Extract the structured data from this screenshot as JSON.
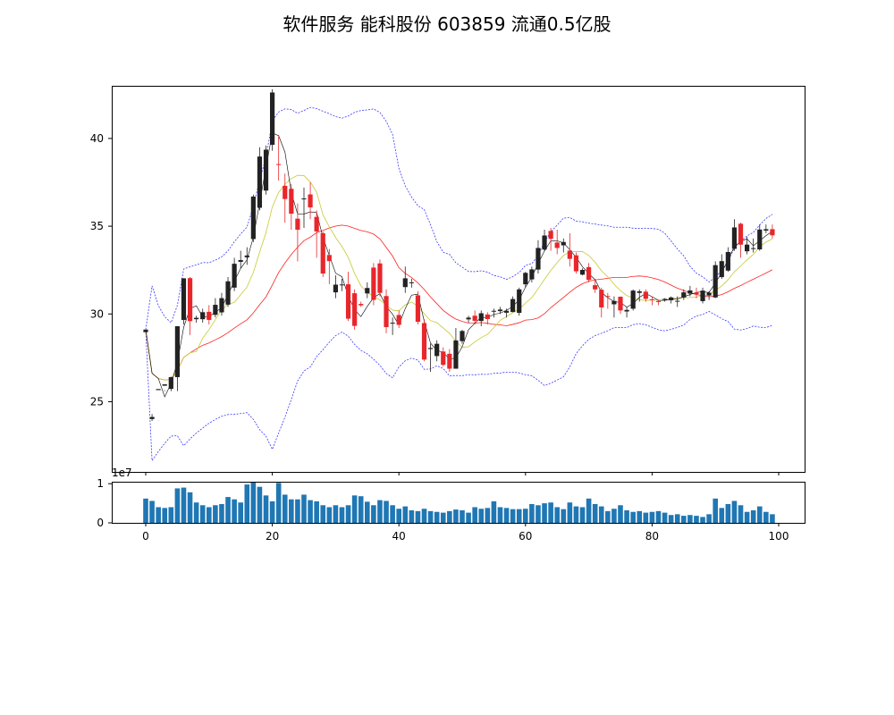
{
  "chart_data": {
    "type": "candlestick",
    "title": "软件服务 能科股份 603859 流通0.5亿股",
    "colors": {
      "up": "#e8262b",
      "down": "#222222",
      "ma5": "#000000",
      "ma10": "#c8c832",
      "ma20": "#ff2020",
      "boll": "#3a3aff",
      "volume": "#1f77b4"
    },
    "x_ticks": [
      "0",
      "20",
      "40",
      "60",
      "80",
      "100"
    ],
    "price_axis": {
      "ylim": [
        21,
        43
      ],
      "ticks": [
        "25",
        "30",
        "35",
        "40"
      ]
    },
    "volume_axis": {
      "ylim": [
        0,
        1.05
      ],
      "ticks": [
        "0",
        "1"
      ],
      "multiplier": "1e7"
    },
    "ohlc": [
      [
        28.96,
        29.11,
        26.69,
        26.68
      ],
      [
        24.01,
        24.13,
        24.3,
        23.9
      ],
      [
        25.66,
        25.72,
        23.91,
        23.9
      ],
      [
        25.91,
        25.99,
        25.65,
        25.6
      ],
      [
        25.73,
        26.4,
        26.43,
        25.6
      ],
      [
        26.4,
        29.3,
        29.31,
        25.6
      ],
      [
        29.66,
        32.03,
        32.04,
        29.4
      ],
      [
        32.04,
        29.59,
        32.1,
        28.8
      ],
      [
        29.7,
        29.78,
        29.9,
        29.5
      ],
      [
        29.7,
        30.1,
        30.3,
        29.5
      ],
      [
        30.12,
        29.66,
        30.5,
        29.4
      ],
      [
        29.95,
        30.52,
        30.9,
        29.8
      ],
      [
        30.09,
        30.9,
        31.2,
        29.9
      ],
      [
        30.53,
        31.86,
        32.1,
        30.4
      ],
      [
        31.5,
        32.86,
        33.2,
        31.3
      ],
      [
        32.97,
        33.07,
        33.6,
        32.6
      ],
      [
        33.23,
        33.33,
        33.8,
        32.8
      ],
      [
        34.27,
        36.69,
        36.8,
        34.1
      ],
      [
        36.05,
        38.97,
        39.5,
        35.9
      ],
      [
        37.03,
        39.36,
        39.6,
        36.8
      ],
      [
        39.64,
        42.62,
        42.8,
        39.3
      ],
      [
        38.54,
        38.49,
        40.2,
        37.6
      ],
      [
        37.3,
        36.55,
        38.0,
        35.2
      ],
      [
        37.13,
        35.71,
        37.4,
        34.8
      ],
      [
        35.43,
        34.8,
        36.3,
        33.0
      ],
      [
        36.58,
        36.58,
        37.2,
        34.9
      ],
      [
        36.81,
        36.07,
        37.5,
        35.4
      ],
      [
        35.53,
        34.7,
        35.9,
        33.2
      ],
      [
        34.6,
        32.3,
        34.7,
        32.1
      ],
      [
        33.36,
        33.01,
        33.7,
        31.7
      ],
      [
        31.23,
        31.67,
        32.2,
        30.9
      ],
      [
        31.68,
        31.68,
        32.0,
        31.3
      ],
      [
        31.69,
        29.73,
        32.4,
        29.6
      ],
      [
        31.18,
        29.32,
        31.4,
        29.1
      ],
      [
        30.57,
        30.49,
        30.7,
        30.4
      ],
      [
        31.17,
        31.48,
        31.8,
        30.9
      ],
      [
        32.64,
        30.8,
        32.9,
        30.5
      ],
      [
        32.88,
        31.2,
        33.1,
        31.0
      ],
      [
        31.02,
        29.25,
        31.4,
        28.9
      ],
      [
        29.47,
        29.5,
        29.8,
        28.8
      ],
      [
        29.94,
        29.38,
        30.2,
        29.2
      ],
      [
        31.53,
        32.03,
        32.7,
        31.2
      ],
      [
        31.77,
        31.8,
        32.0,
        31.5
      ],
      [
        31.06,
        29.55,
        31.3,
        29.4
      ],
      [
        29.48,
        27.4,
        29.7,
        27.3
      ],
      [
        28.0,
        28.06,
        28.3,
        26.7
      ],
      [
        27.6,
        28.3,
        28.5,
        27.3
      ],
      [
        27.86,
        27.1,
        28.1,
        27.0
      ],
      [
        27.73,
        26.88,
        28.0,
        26.7
      ],
      [
        26.88,
        28.49,
        29.2,
        26.9
      ],
      [
        28.45,
        29.03,
        29.1,
        28.3
      ],
      [
        29.69,
        29.79,
        29.9,
        29.5
      ],
      [
        29.9,
        29.61,
        30.2,
        29.4
      ],
      [
        29.6,
        30.04,
        30.2,
        29.3
      ],
      [
        29.97,
        29.71,
        30.1,
        29.4
      ],
      [
        30.15,
        30.18,
        30.3,
        29.8
      ],
      [
        30.16,
        30.25,
        30.4,
        30.0
      ],
      [
        30.07,
        30.18,
        30.3,
        29.8
      ],
      [
        30.11,
        30.85,
        31.0,
        30.1
      ],
      [
        30.06,
        31.4,
        31.5,
        29.9
      ],
      [
        31.69,
        32.34,
        32.4,
        31.5
      ],
      [
        31.97,
        32.54,
        32.7,
        31.8
      ],
      [
        32.53,
        33.76,
        34.2,
        32.3
      ],
      [
        33.67,
        34.47,
        34.8,
        33.6
      ],
      [
        34.73,
        34.28,
        34.9,
        33.6
      ],
      [
        34.07,
        33.76,
        34.8,
        33.4
      ],
      [
        33.91,
        34.1,
        34.3,
        33.5
      ],
      [
        33.61,
        33.14,
        34.6,
        32.7
      ],
      [
        33.34,
        32.43,
        33.5,
        32.3
      ],
      [
        32.24,
        32.51,
        32.6,
        32.2
      ],
      [
        32.67,
        31.94,
        32.9,
        31.8
      ],
      [
        31.64,
        31.4,
        32.0,
        31.2
      ],
      [
        31.38,
        30.37,
        31.5,
        29.8
      ],
      [
        31.02,
        31.01,
        31.2,
        30.3
      ],
      [
        30.55,
        30.74,
        31.0,
        29.8
      ],
      [
        30.98,
        30.2,
        31.0,
        30.0
      ],
      [
        30.14,
        30.23,
        30.4,
        29.8
      ],
      [
        30.3,
        31.33,
        31.4,
        30.2
      ],
      [
        31.2,
        31.29,
        31.4,
        30.7
      ],
      [
        31.27,
        30.86,
        31.4,
        30.7
      ],
      [
        30.83,
        30.79,
        31.0,
        30.5
      ],
      [
        30.73,
        30.68,
        30.8,
        30.5
      ],
      [
        30.86,
        30.86,
        30.9,
        30.7
      ],
      [
        30.78,
        30.94,
        31.0,
        30.6
      ],
      [
        30.71,
        30.75,
        31.0,
        30.4
      ],
      [
        30.94,
        31.23,
        31.4,
        30.8
      ],
      [
        31.16,
        31.34,
        31.6,
        31.0
      ],
      [
        31.22,
        31.12,
        31.5,
        30.9
      ],
      [
        30.73,
        31.33,
        31.5,
        30.6
      ],
      [
        31.05,
        31.21,
        31.3,
        30.8
      ],
      [
        30.94,
        32.78,
        33.0,
        30.9
      ],
      [
        32.1,
        33.01,
        33.4,
        32.0
      ],
      [
        32.47,
        33.53,
        33.8,
        32.4
      ],
      [
        33.71,
        34.93,
        35.4,
        33.6
      ],
      [
        35.14,
        33.95,
        35.2,
        33.2
      ],
      [
        33.57,
        33.95,
        34.4,
        33.4
      ],
      [
        33.74,
        33.75,
        34.3,
        33.5
      ],
      [
        33.68,
        34.81,
        35.1,
        33.6
      ],
      [
        34.75,
        34.83,
        35.1,
        34.6
      ],
      [
        34.83,
        34.48,
        35.1,
        34.3
      ]
    ],
    "volume": [
      0.62,
      0.56,
      0.4,
      0.38,
      0.4,
      0.88,
      0.9,
      0.78,
      0.52,
      0.45,
      0.4,
      0.45,
      0.48,
      0.66,
      0.6,
      0.52,
      0.98,
      1.05,
      0.92,
      0.7,
      0.55,
      1.02,
      0.72,
      0.6,
      0.6,
      0.72,
      0.58,
      0.55,
      0.45,
      0.4,
      0.45,
      0.4,
      0.45,
      0.7,
      0.68,
      0.54,
      0.45,
      0.58,
      0.56,
      0.45,
      0.36,
      0.42,
      0.32,
      0.3,
      0.36,
      0.3,
      0.28,
      0.26,
      0.3,
      0.34,
      0.32,
      0.26,
      0.4,
      0.36,
      0.38,
      0.55,
      0.4,
      0.38,
      0.35,
      0.35,
      0.36,
      0.48,
      0.45,
      0.5,
      0.52,
      0.4,
      0.35,
      0.52,
      0.42,
      0.4,
      0.62,
      0.48,
      0.42,
      0.3,
      0.36,
      0.45,
      0.32,
      0.28,
      0.3,
      0.26,
      0.28,
      0.3,
      0.26,
      0.2,
      0.22,
      0.18,
      0.2,
      0.18,
      0.15,
      0.22,
      0.62,
      0.38,
      0.48,
      0.56,
      0.45,
      0.28,
      0.32,
      0.42,
      0.28,
      0.22
    ]
  }
}
